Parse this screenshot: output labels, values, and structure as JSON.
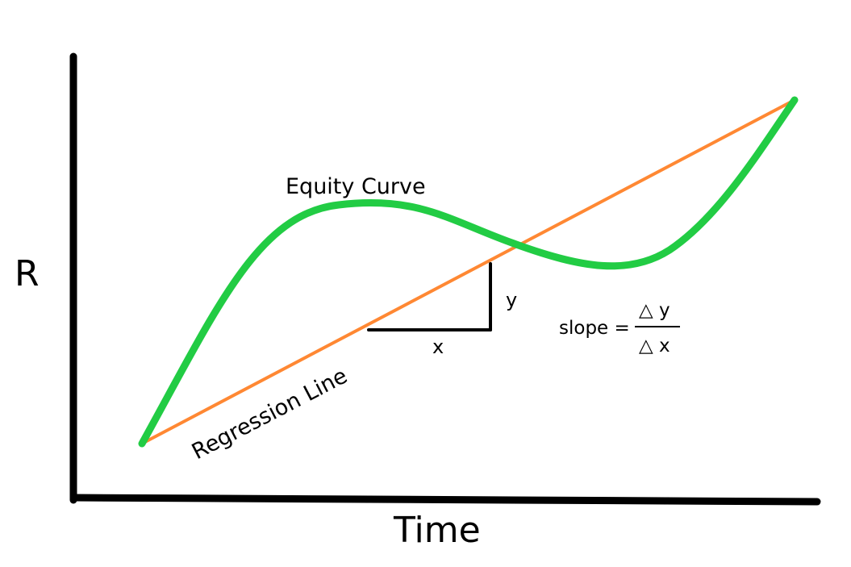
{
  "axes": {
    "y_label": "R",
    "x_label": "Time"
  },
  "labels": {
    "equity_curve": "Equity Curve",
    "regression_line": "Regression Line",
    "run": "x",
    "rise": "y"
  },
  "formula": {
    "lhs": "slope =",
    "numerator": "△ y",
    "denominator": "△ x"
  },
  "colors": {
    "equity_curve": "#22cc44",
    "regression_line": "#ff8833",
    "axes": "#000000"
  }
}
